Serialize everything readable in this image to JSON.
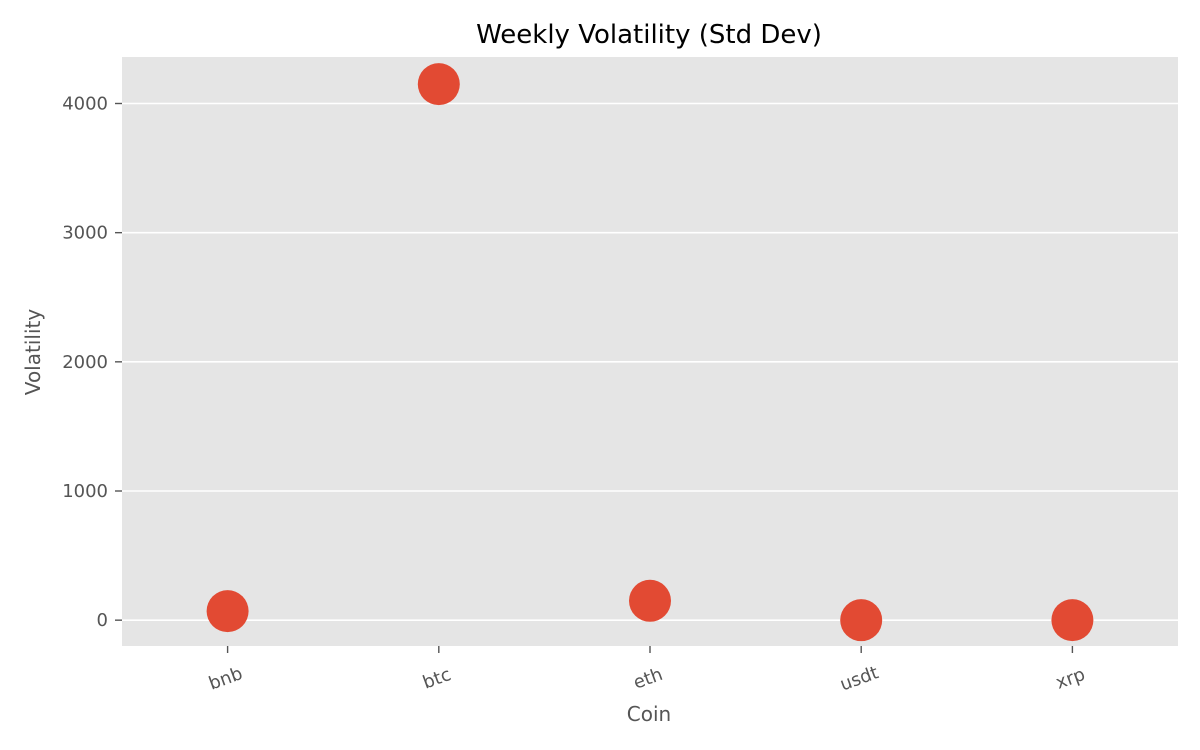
{
  "chart_data": {
    "type": "scatter",
    "title": "Weekly Volatility (Std Dev)",
    "xlabel": "Coin",
    "ylabel": "Volatility",
    "categories": [
      "bnb",
      "btc",
      "eth",
      "usdt",
      "xrp"
    ],
    "values": [
      70,
      4150,
      150,
      0.0,
      0.5
    ],
    "ylim": [
      -200,
      4360
    ],
    "yticks": [
      0,
      1000,
      2000,
      3000,
      4000
    ],
    "grid": true,
    "style": "ggplot",
    "colors": {
      "marker": "#E24A33",
      "panel": "#E5E5E5",
      "grid": "#FFFFFF",
      "tick": "#555555",
      "title": "#000000"
    }
  }
}
